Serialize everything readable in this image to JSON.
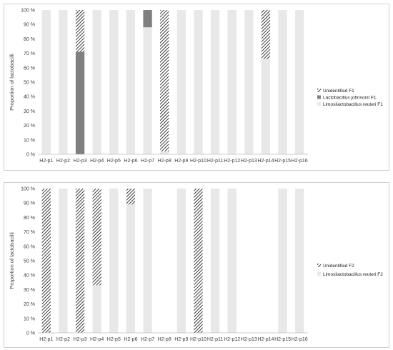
{
  "chart_data": [
    {
      "type": "bar",
      "stacked": true,
      "categories": [
        "H2-p1",
        "H2-p2",
        "H2-p3",
        "H2-p4",
        "H2-p5",
        "H2-p6",
        "H2-p7",
        "H2-p8",
        "H2-p9",
        "H2-p10",
        "H2-p11",
        "H2-p12",
        "H2-p13",
        "H2-p14",
        "H2-p15",
        "H2-p16"
      ],
      "ylabel": "Proportion of lactobacilli",
      "ylim": [
        0,
        100
      ],
      "yticks": [
        "0 %",
        "10 %",
        "20 %",
        "30 %",
        "40 %",
        "50 %",
        "60 %",
        "70 %",
        "80 %",
        "90 %",
        "100 %"
      ],
      "legend_position": "right",
      "series": [
        {
          "name": "Limosilactobacillus reuteri F1",
          "pattern": "solid",
          "color": "#e8e8e8",
          "values": [
            100,
            100,
            0,
            100,
            100,
            100,
            88,
            2,
            100,
            100,
            100,
            100,
            100,
            66,
            100,
            100
          ]
        },
        {
          "name": "Lactobacillus johnsonii F1",
          "pattern": "solid",
          "color": "#7f7f7f",
          "values": [
            0,
            0,
            71,
            0,
            0,
            0,
            12,
            0,
            0,
            0,
            0,
            0,
            0,
            0,
            0,
            0
          ]
        },
        {
          "name": "Unidentified F1",
          "pattern": "hatch",
          "color": "#1a1a1a",
          "values": [
            0,
            0,
            29,
            0,
            0,
            0,
            0,
            98,
            0,
            0,
            0,
            0,
            0,
            34,
            0,
            0
          ]
        }
      ],
      "legend_order": [
        2,
        1,
        0
      ]
    },
    {
      "type": "bar",
      "stacked": true,
      "categories": [
        "H2-p1",
        "H2-p2",
        "H2-p3",
        "H2-p4",
        "H2-p5",
        "H2-p6",
        "H2-p7",
        "H2-p8",
        "H2-p9",
        "H2-p10",
        "H2-p11",
        "H2-p12",
        "H2-p13",
        "H2-p14",
        "H2-p15",
        "H2-p16"
      ],
      "ylabel": "Proportion of lactobacilli",
      "ylim": [
        0,
        100
      ],
      "yticks": [
        "0 %",
        "10 %",
        "20 %",
        "30 %",
        "40 %",
        "50 %",
        "60 %",
        "70 %",
        "80 %",
        "90 %",
        "100 %"
      ],
      "legend_position": "right",
      "series": [
        {
          "name": "Limosilactobacillus reuteri F2",
          "pattern": "solid",
          "color": "#e8e8e8",
          "values": [
            0,
            100,
            0,
            33,
            100,
            89,
            100,
            0,
            100,
            0,
            100,
            100,
            0,
            0,
            100,
            100
          ]
        },
        {
          "name": "Unidentified F2",
          "pattern": "hatch",
          "color": "#1a1a1a",
          "values": [
            100,
            0,
            100,
            67,
            0,
            11,
            0,
            0,
            0,
            100,
            0,
            0,
            0,
            0,
            0,
            0
          ]
        }
      ],
      "legend_order": [
        1,
        0
      ]
    }
  ]
}
